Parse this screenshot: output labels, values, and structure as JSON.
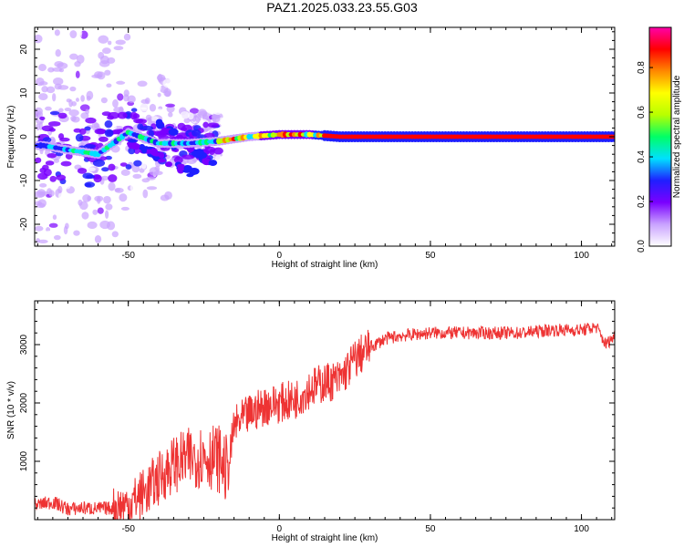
{
  "title": "PAZ1.2025.033.23.55.G03",
  "chart_data": [
    {
      "type": "heatmap",
      "xlabel": "Height of straight line (km)",
      "ylabel": "Frequency (Hz)",
      "xlim": [
        -81,
        111
      ],
      "ylim": [
        -25,
        25
      ],
      "xticks": [
        -50,
        0,
        50,
        100
      ],
      "yticks": [
        -20,
        -10,
        0,
        10,
        20
      ],
      "colorbar": {
        "label": "Normalized spectral amplitude",
        "range": [
          0,
          0.98
        ],
        "ticks": [
          0.0,
          0.2,
          0.4,
          0.6,
          0.8
        ],
        "colormap": [
          "#ffffff",
          "#c9a2ff",
          "#7a00ff",
          "#1f1fff",
          "#00e0ff",
          "#00ff66",
          "#b8ff00",
          "#ffff00",
          "#ff8800",
          "#ff0000",
          "#ff00aa"
        ]
      },
      "ridge": [
        {
          "x": -78,
          "f": -2
        },
        {
          "x": -70,
          "f": -3
        },
        {
          "x": -60,
          "f": -4
        },
        {
          "x": -50,
          "f": 1
        },
        {
          "x": -40,
          "f": -1.5
        },
        {
          "x": -30,
          "f": -1.5
        },
        {
          "x": -20,
          "f": -1
        },
        {
          "x": -10,
          "f": 0
        },
        {
          "x": 0,
          "f": 0.5
        },
        {
          "x": 10,
          "f": 0.5
        },
        {
          "x": 20,
          "f": 0
        },
        {
          "x": 50,
          "f": 0
        },
        {
          "x": 80,
          "f": 0
        },
        {
          "x": 110,
          "f": 0
        }
      ],
      "branches": [
        {
          "x": [
            -50,
            -27
          ],
          "f": [
            -1,
            -9
          ]
        },
        {
          "x": [
            -40,
            -22
          ],
          "f": [
            3,
            -6
          ]
        }
      ]
    },
    {
      "type": "line",
      "xlabel": "Height of straight line (km)",
      "ylabel": "SNR (10 * v/v)",
      "xlim": [
        -81,
        111
      ],
      "ylim": [
        0,
        3750
      ],
      "xticks": [
        -50,
        0,
        50,
        100
      ],
      "yticks": [
        1000,
        2000,
        3000
      ],
      "color": "#ee3333",
      "x": [
        -81,
        -75,
        -70,
        -65,
        -60,
        -55,
        -50,
        -45,
        -40,
        -35,
        -30,
        -25,
        -20,
        -17,
        -15,
        -10,
        -5,
        0,
        5,
        10,
        15,
        20,
        25,
        30,
        35,
        40,
        50,
        60,
        70,
        80,
        90,
        100,
        105,
        108,
        111
      ],
      "y": [
        250,
        300,
        180,
        200,
        190,
        200,
        250,
        450,
        700,
        950,
        1050,
        1100,
        1050,
        800,
        1600,
        1800,
        1950,
        2000,
        2050,
        2250,
        2350,
        2400,
        2750,
        2950,
        3100,
        3150,
        3200,
        3200,
        3200,
        3200,
        3250,
        3250,
        3300,
        3000,
        3150
      ]
    }
  ]
}
